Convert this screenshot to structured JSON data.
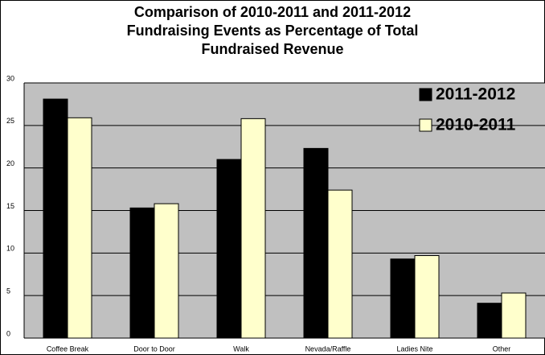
{
  "chart_data": {
    "type": "bar",
    "title": "Comparison of 2010-2011 and 2011-2012 Fundraising Events as  Percentage of Total Fundraised Revenue",
    "categories": [
      "Coffee Break",
      "Door to Door",
      "Walk",
      "Nevada/Raffle",
      "Ladies Nite",
      "Other"
    ],
    "series": [
      {
        "name": "2011-2012",
        "color": "#000000",
        "values": [
          28.1,
          15.3,
          21.0,
          22.3,
          9.3,
          4.1
        ]
      },
      {
        "name": "2010-2011",
        "color": "#ffffcc",
        "values": [
          25.9,
          15.8,
          25.8,
          17.4,
          9.7,
          5.3
        ]
      }
    ],
    "ylim": [
      0,
      30
    ],
    "yticks": [
      0,
      5,
      10,
      15,
      20,
      25,
      30
    ],
    "grid": true,
    "legend": "top-right"
  }
}
